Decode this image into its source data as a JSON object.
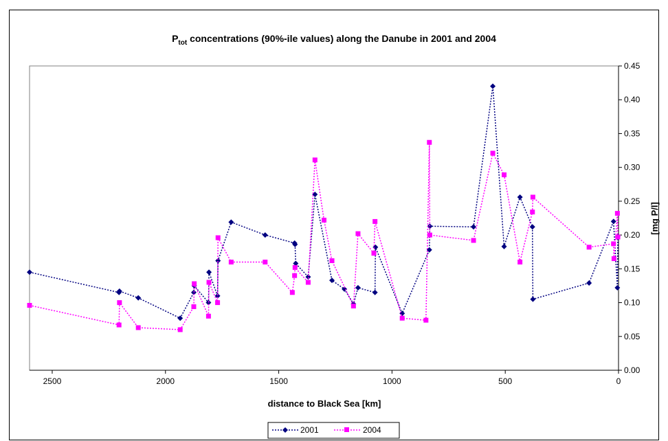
{
  "chart_data": {
    "type": "line",
    "title": "P",
    "title_subscript": "tot",
    "title_rest": " concentrations (90%-ile values) along the Danube in 2001 and 2004",
    "xlabel": "distance to Black Sea [km]",
    "ylabel": "[mg P/l]",
    "xlim": [
      2600,
      0
    ],
    "ylim": [
      0,
      0.45
    ],
    "x_reversed": true,
    "y_axis_side": "right",
    "grid": false,
    "legend": "bottom",
    "x_ticks": [
      "2500",
      "2000",
      "1500",
      "1000",
      "500",
      "0"
    ],
    "x_tick_values": [
      2500,
      2000,
      1500,
      1000,
      500,
      0
    ],
    "y_ticks": [
      "0.00",
      "0.05",
      "0.10",
      "0.15",
      "0.20",
      "0.25",
      "0.30",
      "0.35",
      "0.40",
      "0.45"
    ],
    "y_tick_values": [
      0,
      0.05,
      0.1,
      0.15,
      0.2,
      0.25,
      0.3,
      0.35,
      0.4,
      0.45
    ],
    "series": [
      {
        "name": "2001",
        "color": "#000080",
        "marker": "diamond",
        "points": [
          [
            2600,
            0.145
          ],
          [
            2205,
            0.115
          ],
          [
            2203,
            0.117
          ],
          [
            2120,
            0.107
          ],
          [
            1935,
            0.077
          ],
          [
            1875,
            0.115
          ],
          [
            1873,
            0.125
          ],
          [
            1810,
            0.1
          ],
          [
            1808,
            0.145
          ],
          [
            1770,
            0.11
          ],
          [
            1768,
            0.162
          ],
          [
            1710,
            0.219
          ],
          [
            1560,
            0.2
          ],
          [
            1430,
            0.188
          ],
          [
            1428,
            0.186
          ],
          [
            1425,
            0.158
          ],
          [
            1370,
            0.138
          ],
          [
            1340,
            0.26
          ],
          [
            1265,
            0.133
          ],
          [
            1210,
            0.12
          ],
          [
            1170,
            0.098
          ],
          [
            1150,
            0.122
          ],
          [
            1075,
            0.115
          ],
          [
            1073,
            0.182
          ],
          [
            955,
            0.084
          ],
          [
            835,
            0.178
          ],
          [
            833,
            0.213
          ],
          [
            640,
            0.212
          ],
          [
            555,
            0.42
          ],
          [
            505,
            0.183
          ],
          [
            435,
            0.256
          ],
          [
            380,
            0.212
          ],
          [
            378,
            0.105
          ],
          [
            130,
            0.129
          ],
          [
            22,
            0.22
          ],
          [
            5,
            0.122
          ],
          [
            3,
            0.198
          ]
        ]
      },
      {
        "name": "2004",
        "color": "#FF00FF",
        "marker": "square",
        "points": [
          [
            2600,
            0.096
          ],
          [
            2205,
            0.067
          ],
          [
            2203,
            0.1
          ],
          [
            2120,
            0.063
          ],
          [
            1935,
            0.06
          ],
          [
            1875,
            0.094
          ],
          [
            1873,
            0.128
          ],
          [
            1810,
            0.08
          ],
          [
            1808,
            0.13
          ],
          [
            1770,
            0.1
          ],
          [
            1768,
            0.196
          ],
          [
            1710,
            0.16
          ],
          [
            1560,
            0.16
          ],
          [
            1440,
            0.115
          ],
          [
            1430,
            0.14
          ],
          [
            1428,
            0.152
          ],
          [
            1370,
            0.13
          ],
          [
            1340,
            0.311
          ],
          [
            1300,
            0.222
          ],
          [
            1265,
            0.162
          ],
          [
            1170,
            0.095
          ],
          [
            1150,
            0.202
          ],
          [
            1080,
            0.173
          ],
          [
            1075,
            0.22
          ],
          [
            955,
            0.077
          ],
          [
            850,
            0.074
          ],
          [
            835,
            0.337
          ],
          [
            833,
            0.2
          ],
          [
            640,
            0.192
          ],
          [
            555,
            0.321
          ],
          [
            505,
            0.289
          ],
          [
            435,
            0.16
          ],
          [
            380,
            0.234
          ],
          [
            378,
            0.256
          ],
          [
            130,
            0.182
          ],
          [
            22,
            0.187
          ],
          [
            20,
            0.165
          ],
          [
            5,
            0.232
          ],
          [
            3,
            0.197
          ]
        ]
      }
    ]
  }
}
